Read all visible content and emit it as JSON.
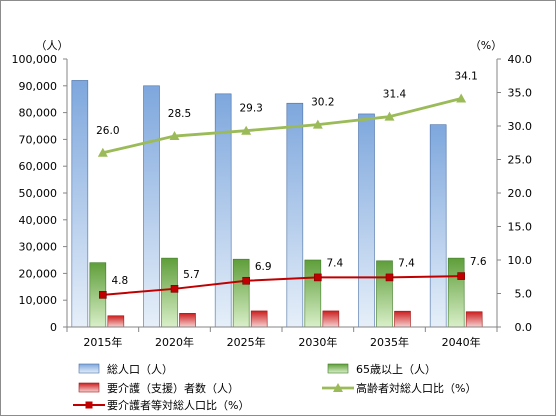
{
  "chart_data": {
    "type": "bar",
    "categories": [
      "2015年",
      "2020年",
      "2025年",
      "2030年",
      "2035年",
      "2040年"
    ],
    "y_left": {
      "unit": "（人）",
      "range": [
        0,
        100000
      ],
      "ticks": [
        "0",
        "10,000",
        "20,000",
        "30,000",
        "40,000",
        "50,000",
        "60,000",
        "70,000",
        "80,000",
        "90,000",
        "100,000"
      ]
    },
    "y_right": {
      "unit": "（%）",
      "range": [
        0,
        40
      ],
      "ticks": [
        "0.0",
        "5.0",
        "10.0",
        "15.0",
        "20.0",
        "25.0",
        "30.0",
        "35.0",
        "40.0"
      ]
    },
    "series": [
      {
        "name": "総人口（人）",
        "kind": "bar",
        "axis": "left",
        "color": "#9dc3e6",
        "values": [
          92000,
          90000,
          87000,
          83500,
          79500,
          75500
        ]
      },
      {
        "name": "65歳以上（人）",
        "kind": "bar",
        "axis": "left",
        "color": "#70ad47",
        "values": [
          24000,
          25700,
          25300,
          25000,
          24700,
          25700
        ]
      },
      {
        "name": "要介護（支援）者数（人）",
        "kind": "bar",
        "axis": "left",
        "color": "#e06060",
        "values": [
          4200,
          5100,
          6000,
          6000,
          5900,
          5700
        ]
      },
      {
        "name": "高齢者対総人口比（%）",
        "kind": "line",
        "axis": "right",
        "color": "#9bbb59",
        "values": [
          26.0,
          28.5,
          29.3,
          30.2,
          31.4,
          34.1
        ],
        "labels": [
          "26.0",
          "28.5",
          "29.3",
          "30.2",
          "31.4",
          "34.1"
        ]
      },
      {
        "name": "要介護者等対総人口比（%）",
        "kind": "line",
        "axis": "right",
        "color": "#c00000",
        "values": [
          4.8,
          5.7,
          6.9,
          7.4,
          7.4,
          7.6
        ],
        "labels": [
          "4.8",
          "5.7",
          "6.9",
          "7.4",
          "7.4",
          "7.6"
        ]
      }
    ],
    "grid": false,
    "legend_position": "bottom"
  }
}
